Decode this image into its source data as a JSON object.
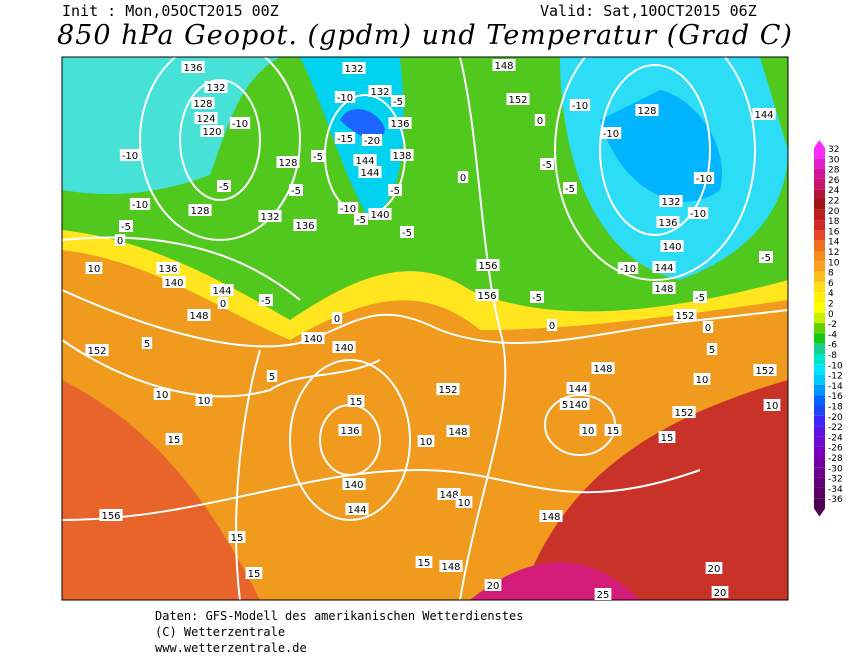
{
  "header": {
    "init": "Init : Mon,05OCT2015 00Z",
    "valid": "Valid: Sat,10OCT2015 06Z",
    "title": "850 hPa Geopot. (gpdm) und Temperatur (Grad C)"
  },
  "color_scale": {
    "labels": [
      32,
      30,
      28,
      26,
      24,
      22,
      20,
      18,
      16,
      14,
      12,
      10,
      8,
      6,
      4,
      2,
      0,
      -2,
      -4,
      -6,
      -8,
      -10,
      -12,
      -14,
      -16,
      -18,
      -20,
      -22,
      -24,
      -26,
      -28,
      -30,
      -32,
      -34,
      -36
    ],
    "colors": [
      "#ff28ff",
      "#e61ed2",
      "#d21496",
      "#c8146e",
      "#b4143c",
      "#a01414",
      "#be1e1e",
      "#d22828",
      "#e64628",
      "#f06e23",
      "#f58c1e",
      "#faa01e",
      "#ffbe1e",
      "#ffdc14",
      "#fff00a",
      "#ffff00",
      "#c8f000",
      "#64d200",
      "#14c814",
      "#14d28c",
      "#00e6c8",
      "#00e6ff",
      "#00c8ff",
      "#0096ff",
      "#0064ff",
      "#1e46ff",
      "#3c28ff",
      "#5a14e6",
      "#6e0ad2",
      "#7800be",
      "#7800a0",
      "#6e008c",
      "#640078",
      "#5a0064",
      "#500050"
    ]
  },
  "map": {
    "contour_labels": [
      "136",
      "132",
      "128",
      "124",
      "120",
      "-10",
      "-10",
      "-5",
      "128",
      "-10",
      "132",
      "136",
      "-5",
      "0",
      "10",
      "136",
      "140",
      "144",
      "0",
      "-5",
      "148",
      "152",
      "5",
      "140",
      "140",
      "0",
      "5",
      "10",
      "10",
      "15",
      "136",
      "15",
      "140",
      "144",
      "156",
      "15",
      "15",
      "10",
      "148",
      "152",
      "148",
      "10",
      "148",
      "15",
      "148",
      "20",
      "25",
      "20",
      "20",
      "15",
      "10",
      "140",
      "144",
      "5",
      "152",
      "15",
      "10",
      "5",
      "152",
      "0",
      "-5",
      "148",
      "144",
      "-10",
      "140",
      "136",
      "-10",
      "132",
      "-10",
      "128",
      "-10",
      "-10",
      "152",
      "0",
      "-5",
      "-5",
      "156",
      "156",
      "-5",
      "0",
      "148",
      "144",
      "-5",
      "152",
      "10",
      "148",
      "-10",
      "-20",
      "-15",
      "144",
      "144",
      "-5",
      "140",
      "-10",
      "-5",
      "-5",
      "0",
      "136",
      "138",
      "132",
      "-5",
      "132",
      "128",
      "-5",
      "-5"
    ]
  },
  "footer": {
    "lines": [
      "Daten: GFS-Modell des amerikanischen Wetterdienstes",
      "(C) Wetterzentrale",
      "www.wetterzentrale.de"
    ]
  }
}
